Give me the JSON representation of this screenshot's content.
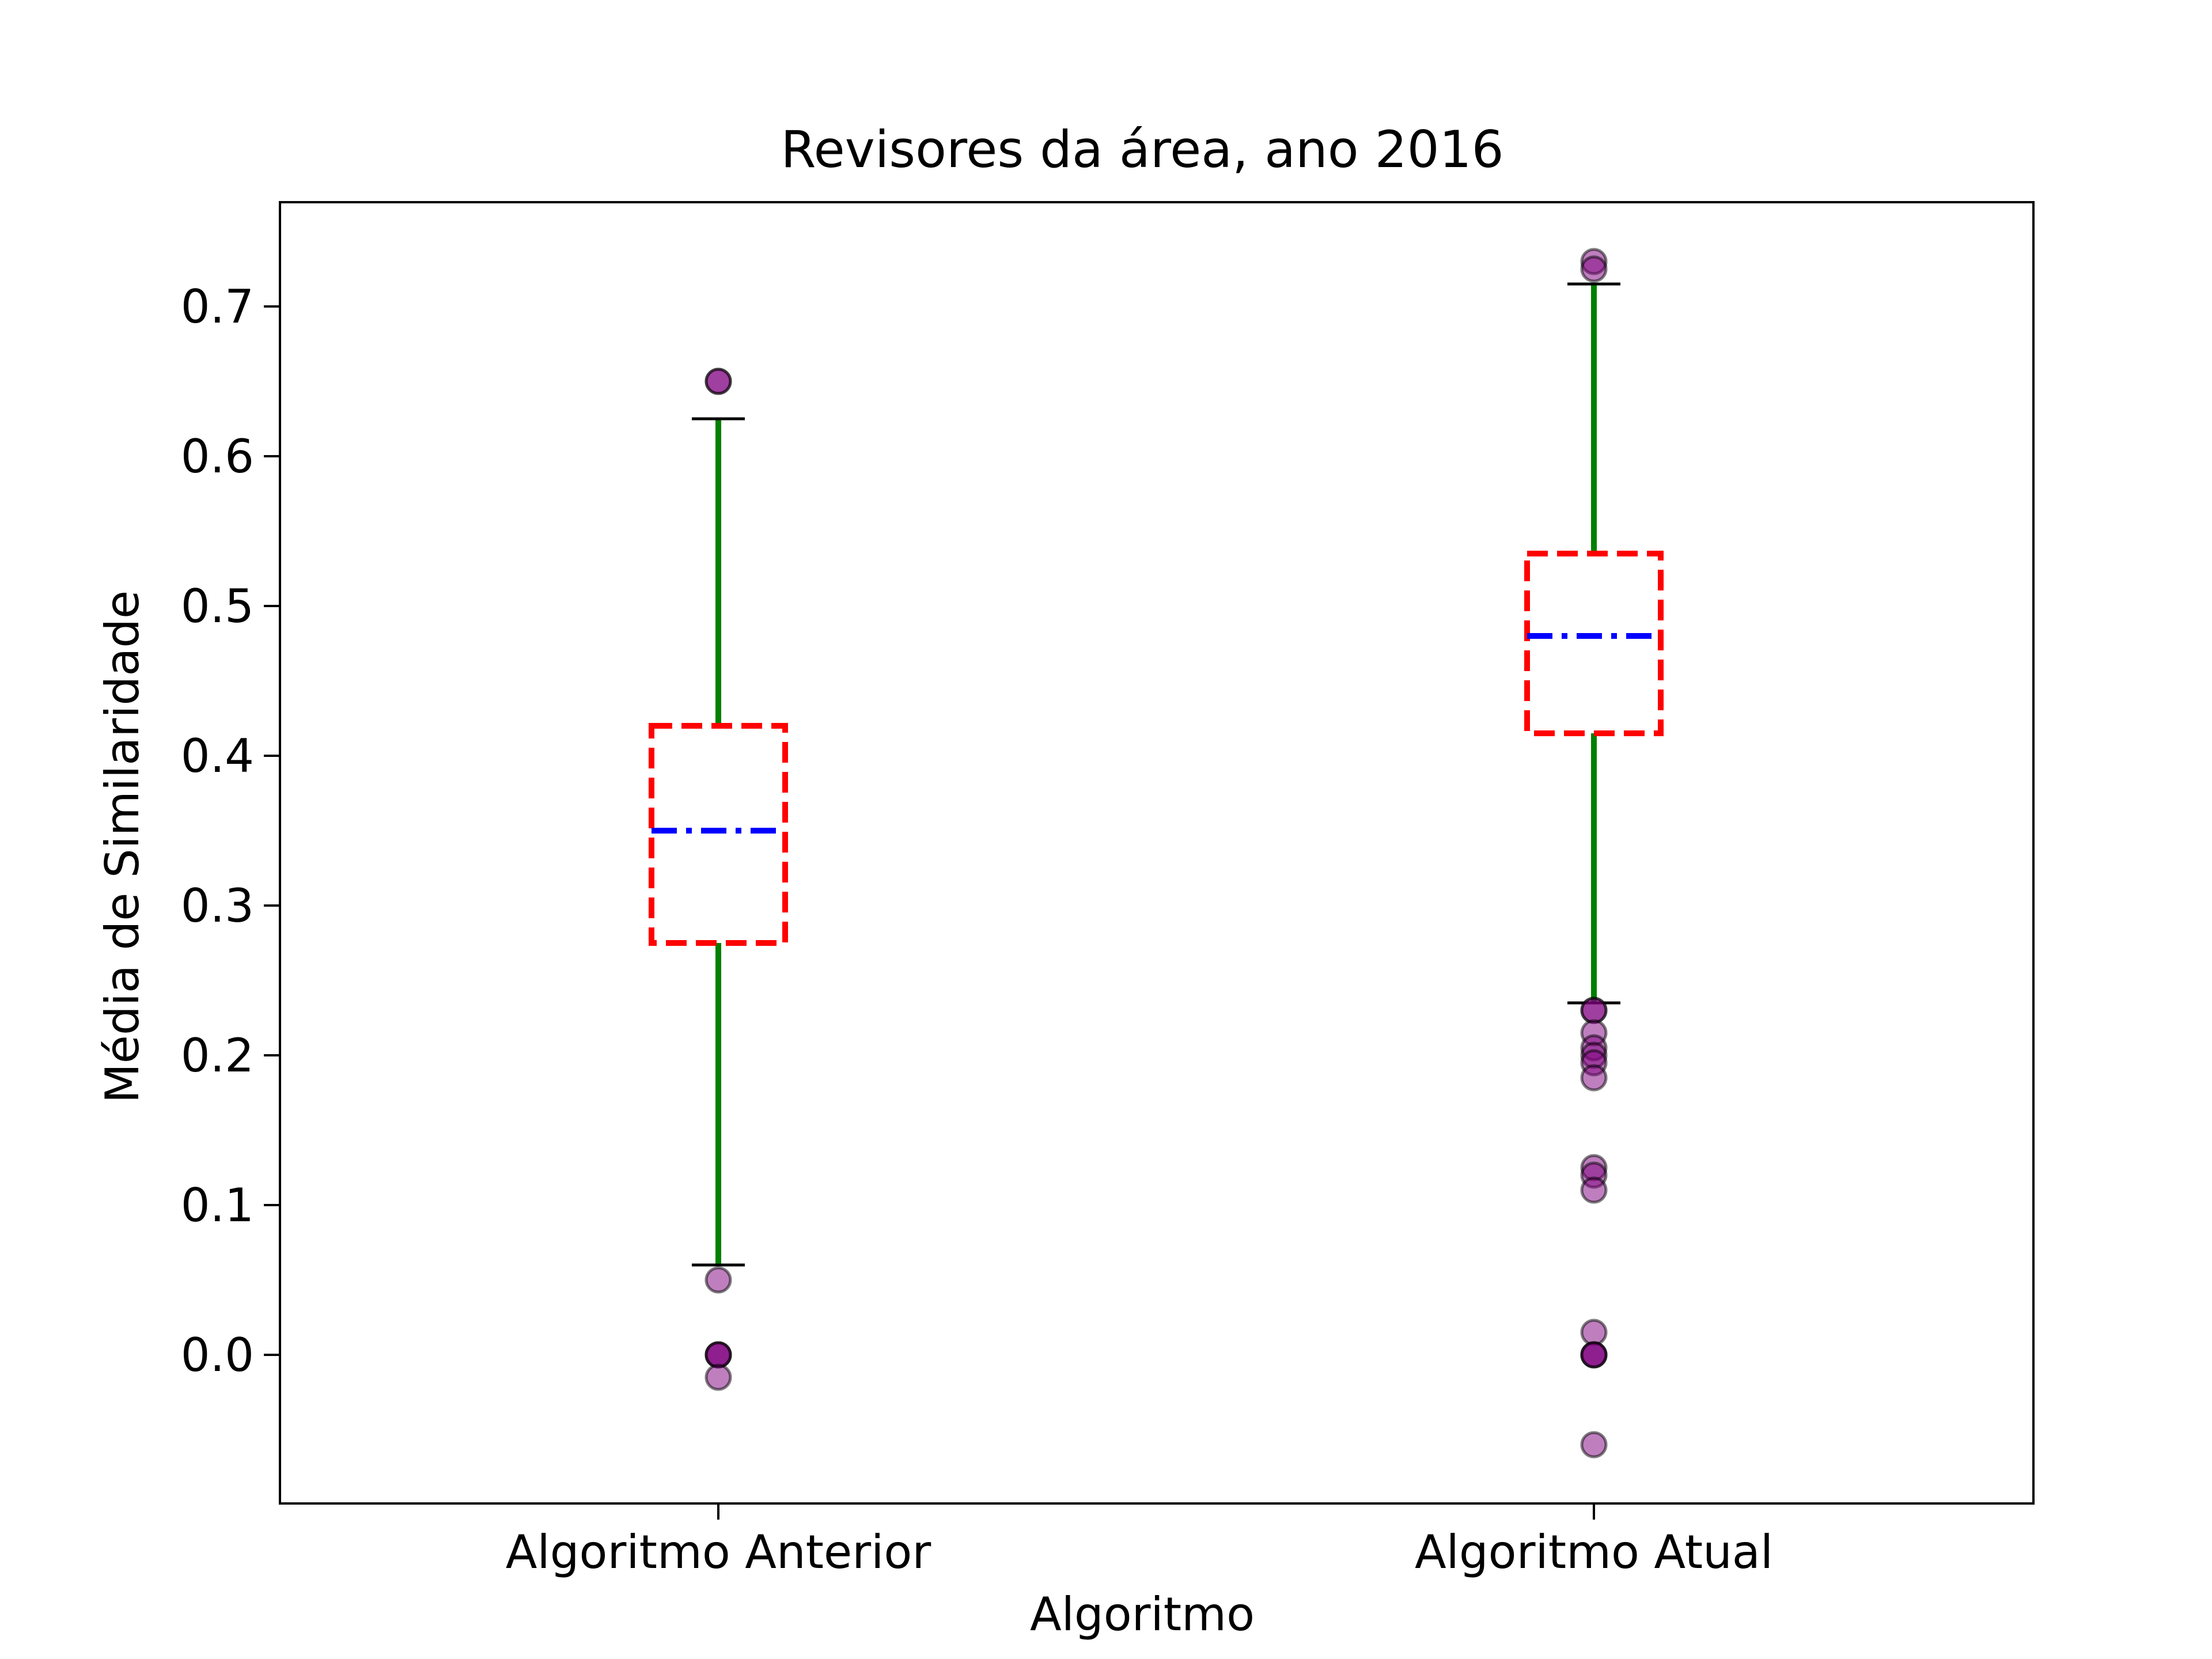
{
  "chart_data": {
    "type": "box",
    "title": "Revisores da área, ano 2016",
    "xlabel": "Algoritmo",
    "ylabel": "Média de Similaridade",
    "ylim": [
      -0.1,
      0.77
    ],
    "yticks": [
      0.0,
      0.1,
      0.2,
      0.3,
      0.4,
      0.5,
      0.6,
      0.7
    ],
    "ytick_labels": [
      "0.0",
      "0.1",
      "0.2",
      "0.3",
      "0.4",
      "0.5",
      "0.6",
      "0.7"
    ],
    "grid": false,
    "categories": [
      "Algoritmo Anterior",
      "Algoritmo Atual"
    ],
    "boxes": [
      {
        "category": "Algoritmo Anterior",
        "whisker_low": 0.06,
        "q1": 0.275,
        "median": 0.35,
        "q3": 0.42,
        "whisker_high": 0.625,
        "outliers": [
          0.65,
          0.65,
          0.05,
          0.0,
          0.0,
          0.0,
          -0.015
        ]
      },
      {
        "category": "Algoritmo Atual",
        "whisker_low": 0.235,
        "q1": 0.415,
        "median": 0.48,
        "q3": 0.535,
        "whisker_high": 0.715,
        "outliers": [
          0.73,
          0.725,
          0.23,
          0.23,
          0.215,
          0.205,
          0.2,
          0.195,
          0.185,
          0.125,
          0.12,
          0.11,
          0.015,
          0.0,
          0.0,
          0.0,
          -0.06
        ]
      }
    ],
    "colors": {
      "box": "#ff0000",
      "median": "#0000ff",
      "whisker": "#008000",
      "cap": "#000000",
      "outlier_fill": "#800080",
      "outlier_edge": "#000000"
    }
  }
}
